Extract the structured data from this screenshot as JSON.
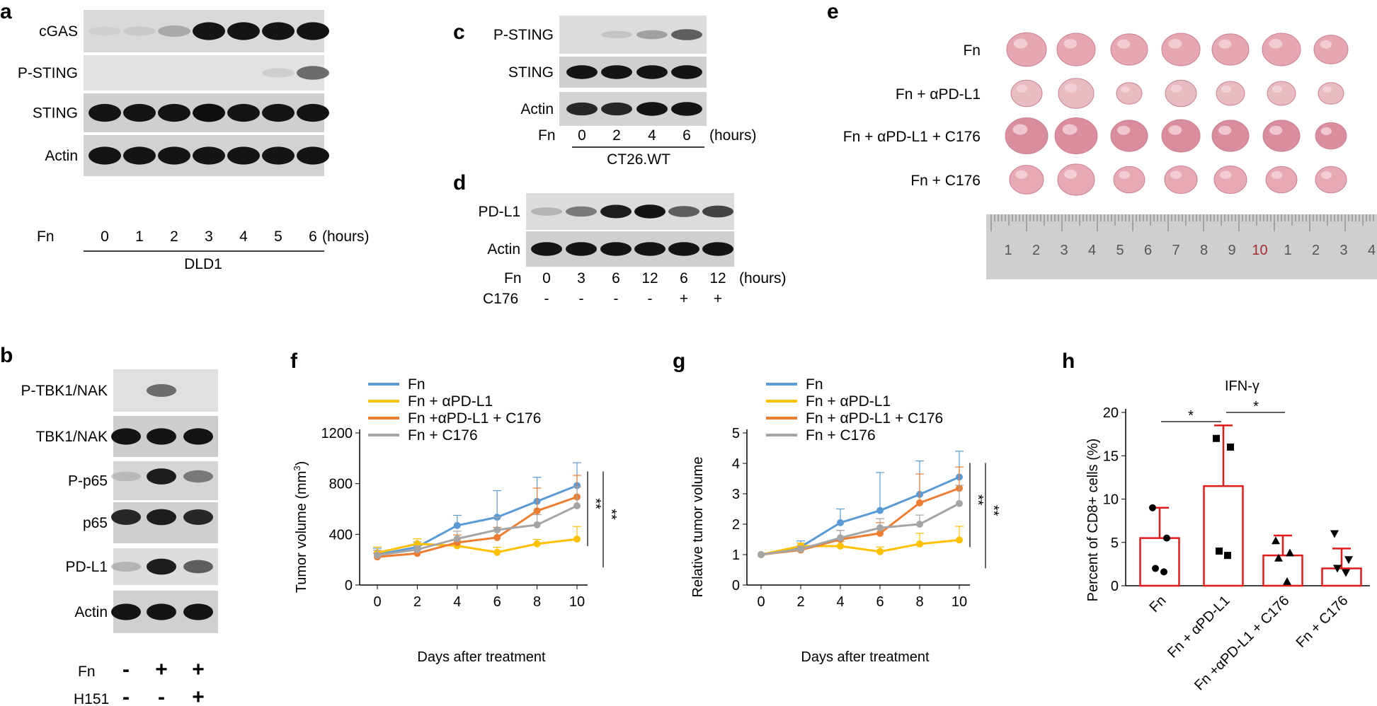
{
  "panels": {
    "a": {
      "letter": "a",
      "rows": [
        "cGAS",
        "P-STING",
        "STING",
        "Actin"
      ],
      "treat": "Fn",
      "lanes": [
        "0",
        "1",
        "2",
        "3",
        "4",
        "5",
        "6"
      ],
      "unit": "(hours)",
      "cell": "DLD1"
    },
    "b": {
      "letter": "b",
      "rows": [
        "P-TBK1/NAK",
        "TBK1/NAK",
        "P-p65",
        "p65",
        "PD-L1",
        "Actin"
      ],
      "treat1": "Fn",
      "treat1_vals": [
        "-",
        "+",
        "+"
      ],
      "treat2": "H151",
      "treat2_vals": [
        "-",
        "-",
        "+"
      ]
    },
    "c": {
      "letter": "c",
      "rows": [
        "P-STING",
        "STING",
        "Actin"
      ],
      "treat": "Fn",
      "lanes": [
        "0",
        "2",
        "4",
        "6"
      ],
      "unit": "(hours)",
      "cell": "CT26.WT"
    },
    "d": {
      "letter": "d",
      "rows": [
        "PD-L1",
        "Actin"
      ],
      "treat1": "Fn",
      "lanes": [
        "0",
        "3",
        "6",
        "12",
        "6",
        "12"
      ],
      "unit": "(hours)",
      "treat2": "C176",
      "treat2_vals": [
        "-",
        "-",
        "-",
        "-",
        "+",
        "+"
      ]
    },
    "e": {
      "letter": "e",
      "groups": [
        "Fn",
        "Fn + αPD-L1",
        "Fn + αPD-L1 + C176",
        "Fn + C176"
      ],
      "ruler": [
        "1",
        "2",
        "3",
        "4",
        "5",
        "6",
        "7",
        "8",
        "9",
        "10",
        "1",
        "2",
        "3",
        "4"
      ]
    },
    "f": {
      "letter": "f",
      "legend": [
        "Fn",
        "Fn + αPD-L1",
        "Fn +αPD-L1 + C176",
        "Fn + C176"
      ],
      "ylabel": "Tumor volume (mm",
      "ylabel_sup": "3",
      "ylabel_end": ")",
      "xlabel": "Days after treatment",
      "yticks": [
        "0",
        "400",
        "800",
        "1200"
      ],
      "xticks": [
        "0",
        "2",
        "4",
        "6",
        "8",
        "10"
      ],
      "sig": [
        "**",
        "**"
      ]
    },
    "g": {
      "letter": "g",
      "legend": [
        "Fn",
        "Fn + αPD-L1",
        "Fn + αPD-L1 + C176",
        "Fn + C176"
      ],
      "ylabel": "Relative tumor volume",
      "xlabel": "Days after treatment",
      "yticks": [
        "0",
        "1",
        "2",
        "3",
        "4",
        "5"
      ],
      "xticks": [
        "0",
        "2",
        "4",
        "6",
        "8",
        "10"
      ],
      "sig": [
        "**",
        "**"
      ]
    },
    "h": {
      "letter": "h",
      "title": "IFN-γ",
      "ylabel": "Percent of  CD8+ cells (%)",
      "yticks": [
        "0",
        "5",
        "10",
        "15",
        "20"
      ],
      "categories": [
        "Fn",
        "Fn + αPD-L1",
        "Fn +αPD-L1 + C176",
        "Fn + C176"
      ],
      "sig": [
        "*",
        "*"
      ]
    }
  },
  "colors": {
    "blue": "#5b9bd5",
    "yellow": "#ffc000",
    "orange": "#ed7d31",
    "gray": "#a5a5a5",
    "red": "#e21a1a"
  },
  "chart_data": [
    {
      "type": "line",
      "panel": "f",
      "title": "",
      "xlabel": "Days after treatment",
      "ylabel": "Tumor volume (mm3)",
      "x": [
        0,
        2,
        4,
        6,
        8,
        10
      ],
      "ylim": [
        0,
        1200
      ],
      "series": [
        {
          "name": "Fn",
          "values": [
            240,
            300,
            470,
            535,
            660,
            785
          ],
          "err": [
            50,
            40,
            80,
            210,
            190,
            180
          ]
        },
        {
          "name": "Fn + αPD-L1",
          "values": [
            255,
            325,
            310,
            258,
            325,
            362
          ],
          "err": [
            45,
            40,
            40,
            40,
            35,
            100
          ]
        },
        {
          "name": "Fn +αPD-L1 + C176",
          "values": [
            222,
            250,
            335,
            375,
            585,
            695
          ],
          "err": [
            30,
            30,
            60,
            80,
            180,
            170
          ]
        },
        {
          "name": "Fn + C176",
          "values": [
            235,
            280,
            365,
            435,
            475,
            625
          ],
          "err": [
            40,
            30,
            60,
            100,
            80,
            150
          ]
        }
      ]
    },
    {
      "type": "line",
      "panel": "g",
      "title": "",
      "xlabel": "Days after treatment",
      "ylabel": "Relative tumor volume",
      "x": [
        0,
        2,
        4,
        6,
        8,
        10
      ],
      "ylim": [
        0,
        5
      ],
      "series": [
        {
          "name": "Fn",
          "values": [
            1,
            1.25,
            2.05,
            2.45,
            2.98,
            3.55
          ],
          "err": [
            0,
            0.2,
            0.45,
            1.25,
            1.1,
            0.85
          ]
        },
        {
          "name": "Fn + αPD-L1",
          "values": [
            1,
            1.28,
            1.28,
            1.1,
            1.35,
            1.48
          ],
          "err": [
            0,
            0.1,
            0.15,
            0.15,
            0.35,
            0.45
          ]
        },
        {
          "name": "Fn + αPD-L1 + C176",
          "values": [
            1,
            1.15,
            1.5,
            1.7,
            2.7,
            3.18
          ],
          "err": [
            0,
            0.12,
            0.3,
            0.35,
            0.95,
            0.7
          ]
        },
        {
          "name": "Fn + C176",
          "values": [
            1,
            1.18,
            1.55,
            1.88,
            2.0,
            2.68
          ],
          "err": [
            0,
            0.1,
            0.25,
            0.3,
            0.3,
            0.6
          ]
        }
      ]
    },
    {
      "type": "bar",
      "panel": "h",
      "title": "IFN-γ",
      "ylabel": "Percent of  CD8+ cells (%)",
      "ylim": [
        0,
        20
      ],
      "categories": [
        "Fn",
        "Fn + αPD-L1",
        "Fn +αPD-L1 + C176",
        "Fn + C176"
      ],
      "values": [
        5.5,
        11.5,
        3.5,
        2.0
      ],
      "err": [
        3.5,
        7.0,
        2.3,
        2.3
      ],
      "points": [
        [
          9,
          5.5,
          2.0,
          1.6
        ],
        [
          17,
          16,
          4,
          3.5
        ],
        [
          5.2,
          3.8,
          3.2,
          0.5
        ],
        [
          6,
          3,
          2,
          1.5
        ]
      ],
      "markers": [
        "circle",
        "square",
        "triangle",
        "triangle-down"
      ]
    }
  ]
}
